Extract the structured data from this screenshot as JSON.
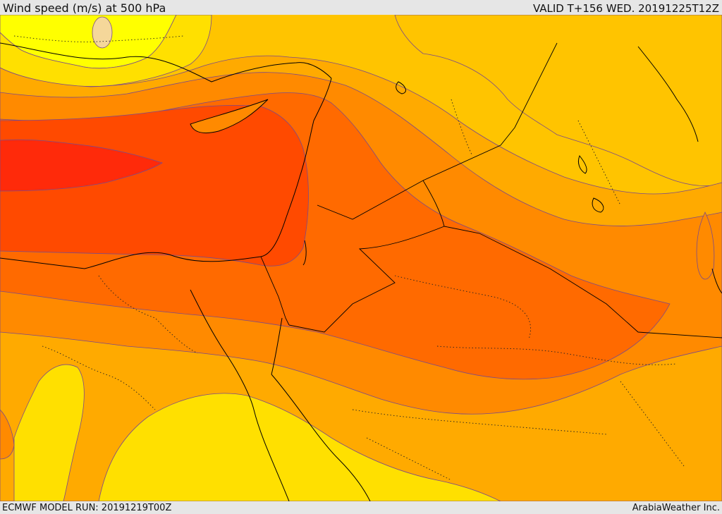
{
  "header": {
    "title": "Wind speed (m/s) at 500 hPa",
    "valid": "VALID T+156 WED. 20191225T12Z"
  },
  "footer": {
    "model_run": "ECMWF MODEL RUN: 20191219T00Z",
    "credit": "ArabiaWeather Inc."
  },
  "map": {
    "field": "wind speed",
    "level": "500 hPa",
    "palette": {
      "very_low": "#ffff00",
      "low": "#ffe000",
      "mid_low": "#ffc400",
      "mid": "#ffaa00",
      "mid_high": "#ff8a00",
      "high": "#ff6a00",
      "very_high": "#ff4a00",
      "max": "#ff2a0a",
      "min_patch": "#f5d79a",
      "coastline": "#000000",
      "border_dotted": "#222222",
      "contour": "#7a4a8a"
    }
  }
}
